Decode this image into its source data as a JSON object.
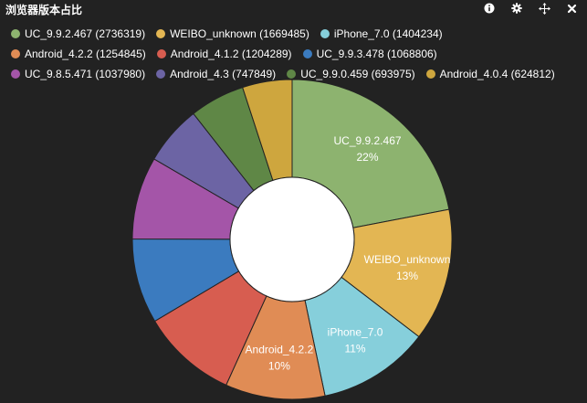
{
  "title": "浏览器版本占比",
  "toolbar": [
    {
      "name": "info-icon",
      "glyph": "info"
    },
    {
      "name": "gear-icon",
      "glyph": "gear"
    },
    {
      "name": "move-icon",
      "glyph": "move"
    },
    {
      "name": "close-icon",
      "glyph": "close"
    }
  ],
  "chart_data": {
    "type": "pie",
    "donut": true,
    "title": "浏览器版本占比",
    "legend_position": "top",
    "slices": [
      {
        "name": "UC_9.9.2.467",
        "value": 2736319,
        "color": "#8db36f",
        "label": "UC_9.9.2.467",
        "pct_label": "22%"
      },
      {
        "name": "WEIBO_unknown",
        "value": 1669485,
        "color": "#e3b653",
        "label": "WEIBO_unknown",
        "pct_label": "13%"
      },
      {
        "name": "iPhone_7.0",
        "value": 1404234,
        "color": "#86cfdb",
        "label": "iPhone_7.0",
        "pct_label": "11%"
      },
      {
        "name": "Android_4.2.2",
        "value": 1254845,
        "color": "#e08c55",
        "label": "Android_4.2.2",
        "pct_label": "10%"
      },
      {
        "name": "Android_4.1.2",
        "value": 1204289,
        "color": "#d75d50",
        "label": "",
        "pct_label": ""
      },
      {
        "name": "UC_9.9.3.478",
        "value": 1068806,
        "color": "#3b7bbf",
        "label": "",
        "pct_label": ""
      },
      {
        "name": "UC_9.8.5.471",
        "value": 1037980,
        "color": "#a455a8",
        "label": "",
        "pct_label": ""
      },
      {
        "name": "Android_4.3",
        "value": 747849,
        "color": "#6c64a4",
        "label": "",
        "pct_label": ""
      },
      {
        "name": "UC_9.9.0.459",
        "value": 693975,
        "color": "#5f8746",
        "label": "",
        "pct_label": ""
      },
      {
        "name": "Android_4.0.4",
        "value": 624812,
        "color": "#cea63e",
        "label": "",
        "pct_label": ""
      }
    ]
  }
}
